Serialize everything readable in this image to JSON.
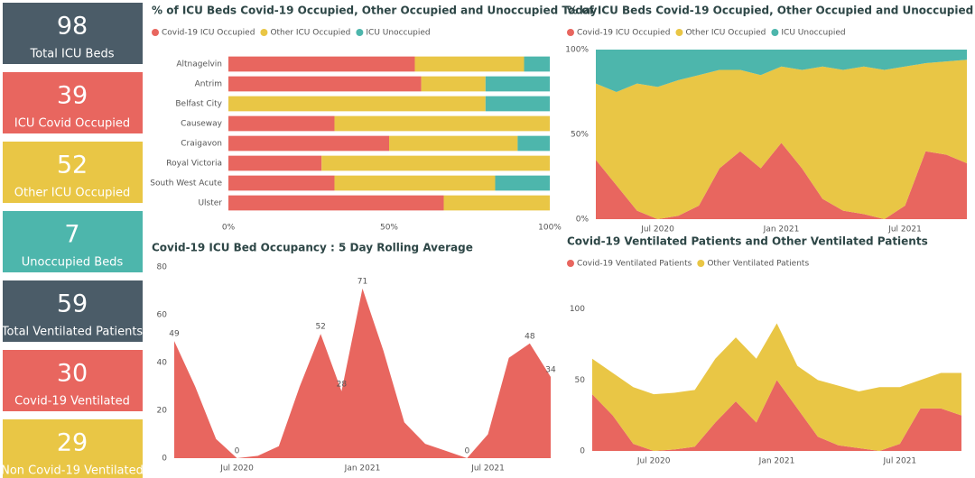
{
  "cards": [
    {
      "value": "98",
      "label": "Total ICU Beds",
      "color": "#4b5c68"
    },
    {
      "value": "39",
      "label": "ICU Covid Occupied",
      "color": "#e8665f"
    },
    {
      "value": "52",
      "label": "Other ICU Occupied",
      "color": "#e9c645"
    },
    {
      "value": "7",
      "label": "Unoccupied Beds",
      "color": "#4db6ac"
    },
    {
      "value": "59",
      "label": "Total Ventilated Patients",
      "color": "#4b5c68"
    },
    {
      "value": "30",
      "label": "Covid-19 Ventilated",
      "color": "#e8665f"
    },
    {
      "value": "29",
      "label": "Non Covid-19 Ventilated",
      "color": "#e9c645"
    }
  ],
  "chart_data": [
    {
      "type": "bar",
      "orientation": "horizontal",
      "stacked": true,
      "title": "% of ICU Beds Covid-19 Occupied, Other Occupied and Unoccupied Today",
      "categories": [
        "Altnagelvin",
        "Antrim",
        "Belfast City",
        "Causeway",
        "Craigavon",
        "Royal Victoria",
        "South West Acute",
        "Ulster"
      ],
      "series": [
        {
          "name": "Covid-19 ICU Occupied",
          "color": "#e8665f",
          "values": [
            58,
            60,
            0,
            33,
            50,
            29,
            33,
            67
          ]
        },
        {
          "name": "Other ICU Occupied",
          "color": "#e9c645",
          "values": [
            34,
            20,
            80,
            67,
            40,
            71,
            50,
            33
          ]
        },
        {
          "name": "ICU Unoccupied",
          "color": "#4db6ac",
          "values": [
            8,
            20,
            20,
            0,
            10,
            0,
            17,
            0
          ]
        }
      ],
      "xlim": [
        0,
        100
      ],
      "xticks": [
        {
          "value": 0,
          "label": "0%"
        },
        {
          "value": 50,
          "label": "50%"
        },
        {
          "value": 100,
          "label": "100%"
        }
      ],
      "grid": false,
      "legend": "top-left"
    },
    {
      "type": "area",
      "stacked": true,
      "title": "% of ICU Beds Covid-19 Occupied, Other Occupied and Unoccupied",
      "x": [
        "2020-04",
        "2020-05",
        "2020-06",
        "2020-07",
        "2020-08",
        "2020-09",
        "2020-10",
        "2020-11",
        "2020-12",
        "2021-01",
        "2021-02",
        "2021-03",
        "2021-04",
        "2021-05",
        "2021-06",
        "2021-07",
        "2021-08",
        "2021-09",
        "2021-10"
      ],
      "series": [
        {
          "name": "Covid-19 ICU Occupied",
          "color": "#e8665f",
          "values": [
            35,
            20,
            5,
            0,
            2,
            8,
            30,
            40,
            30,
            45,
            30,
            12,
            5,
            3,
            0,
            8,
            40,
            38,
            33
          ]
        },
        {
          "name": "Other ICU Occupied",
          "color": "#e9c645",
          "values": [
            45,
            55,
            75,
            78,
            80,
            77,
            58,
            48,
            55,
            45,
            58,
            78,
            83,
            87,
            88,
            82,
            52,
            55,
            61
          ]
        },
        {
          "name": "ICU Unoccupied",
          "color": "#4db6ac",
          "values": [
            20,
            25,
            20,
            22,
            18,
            15,
            12,
            12,
            15,
            10,
            12,
            10,
            12,
            10,
            12,
            10,
            8,
            7,
            6
          ]
        }
      ],
      "xticks": [
        {
          "value": "2020-07",
          "label": "Jul 2020"
        },
        {
          "value": "2021-01",
          "label": "Jan 2021"
        },
        {
          "value": "2021-07",
          "label": "Jul 2021"
        }
      ],
      "ylim": [
        0,
        100
      ],
      "yticks": [
        {
          "value": 0,
          "label": "0%"
        },
        {
          "value": 50,
          "label": "50%"
        },
        {
          "value": 100,
          "label": "100%"
        }
      ],
      "legend": "top-left"
    },
    {
      "type": "area",
      "stacked": false,
      "title": "Covid-19 ICU Bed Occupancy : 5 Day Rolling Average",
      "color": "#e8665f",
      "x": [
        "2020-04",
        "2020-05",
        "2020-06",
        "2020-07",
        "2020-08",
        "2020-09",
        "2020-10",
        "2020-11",
        "2020-12",
        "2021-01",
        "2021-02",
        "2021-03",
        "2021-04",
        "2021-05",
        "2021-06",
        "2021-07",
        "2021-08",
        "2021-09",
        "2021-10"
      ],
      "values": [
        49,
        30,
        8,
        0,
        1,
        5,
        30,
        52,
        28,
        71,
        45,
        15,
        6,
        3,
        0,
        10,
        42,
        48,
        34
      ],
      "value_labels": [
        "49",
        null,
        null,
        "0",
        null,
        null,
        null,
        "52",
        "28",
        "71",
        null,
        null,
        null,
        null,
        "0",
        null,
        null,
        "48",
        "34"
      ],
      "xticks": [
        {
          "value": "2020-07",
          "label": "Jul 2020"
        },
        {
          "value": "2021-01",
          "label": "Jan 2021"
        },
        {
          "value": "2021-07",
          "label": "Jul 2021"
        }
      ],
      "ylim": [
        0,
        80
      ],
      "yticks": [
        0,
        20,
        40,
        60,
        80
      ]
    },
    {
      "type": "area",
      "stacked": true,
      "title": "Covid-19 Ventilated Patients and Other Ventilated Patients",
      "x": [
        "2020-04",
        "2020-05",
        "2020-06",
        "2020-07",
        "2020-08",
        "2020-09",
        "2020-10",
        "2020-11",
        "2020-12",
        "2021-01",
        "2021-02",
        "2021-03",
        "2021-04",
        "2021-05",
        "2021-06",
        "2021-07",
        "2021-08",
        "2021-09",
        "2021-10"
      ],
      "series": [
        {
          "name": "Covid-19 Ventilated Patients",
          "color": "#e8665f",
          "values": [
            40,
            25,
            5,
            0,
            1,
            3,
            20,
            35,
            20,
            50,
            30,
            10,
            4,
            2,
            0,
            5,
            30,
            30,
            25
          ]
        },
        {
          "name": "Other Ventilated Patients",
          "color": "#e9c645",
          "values": [
            25,
            30,
            40,
            40,
            40,
            40,
            45,
            45,
            45,
            40,
            30,
            40,
            42,
            40,
            45,
            40,
            20,
            25,
            30
          ]
        }
      ],
      "xticks": [
        {
          "value": "2020-07",
          "label": "Jul 2020"
        },
        {
          "value": "2021-01",
          "label": "Jan 2021"
        },
        {
          "value": "2021-07",
          "label": "Jul 2021"
        }
      ],
      "ylim": [
        0,
        110
      ],
      "yticks": [
        0,
        50,
        100
      ],
      "legend": "top-left"
    }
  ]
}
